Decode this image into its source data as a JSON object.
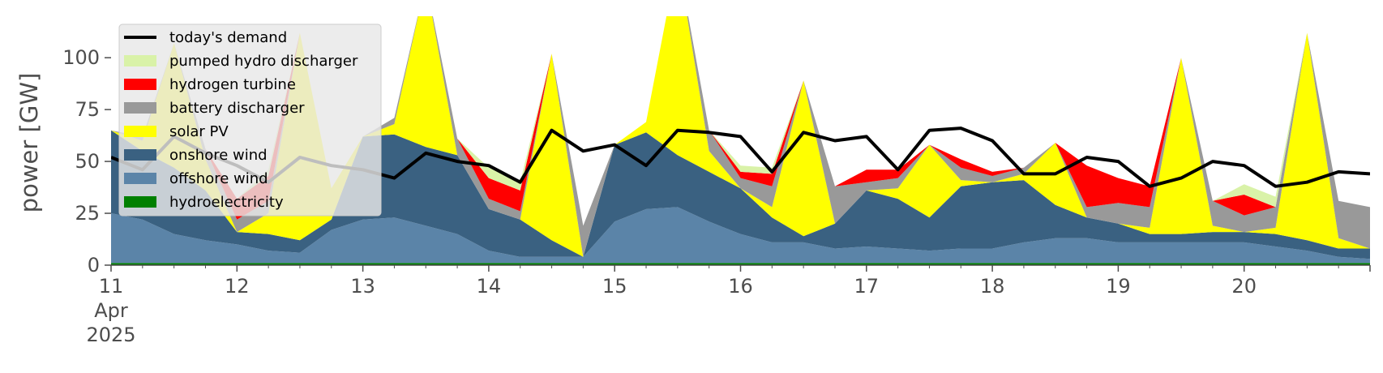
{
  "chart_data": {
    "type": "area",
    "ylabel": "power [GW]",
    "ylim": [
      0,
      120
    ],
    "xlim": [
      "2025-04-11 00:00",
      "2025-04-21 00:00"
    ],
    "yticks": [
      0,
      25,
      50,
      75,
      100
    ],
    "ytick_labels": [
      "0",
      "25",
      "50",
      "75",
      "100"
    ],
    "xticks": [
      {
        "date": "2025-04-11",
        "label": "11",
        "sub": [
          "Apr",
          "2025"
        ]
      },
      {
        "date": "2025-04-12",
        "label": "12"
      },
      {
        "date": "2025-04-13",
        "label": "13"
      },
      {
        "date": "2025-04-14",
        "label": "14"
      },
      {
        "date": "2025-04-15",
        "label": "15"
      },
      {
        "date": "2025-04-16",
        "label": "16"
      },
      {
        "date": "2025-04-17",
        "label": "17"
      },
      {
        "date": "2025-04-18",
        "label": "18"
      },
      {
        "date": "2025-04-19",
        "label": "19"
      },
      {
        "date": "2025-04-20",
        "label": "20"
      }
    ],
    "grid": false,
    "legend_position": "top-left",
    "x": [
      "2025-04-11 00:00",
      "2025-04-11 06:00",
      "2025-04-11 12:00",
      "2025-04-11 18:00",
      "2025-04-12 00:00",
      "2025-04-12 06:00",
      "2025-04-12 12:00",
      "2025-04-12 18:00",
      "2025-04-13 00:00",
      "2025-04-13 06:00",
      "2025-04-13 12:00",
      "2025-04-13 18:00",
      "2025-04-14 00:00",
      "2025-04-14 06:00",
      "2025-04-14 12:00",
      "2025-04-14 18:00",
      "2025-04-15 00:00",
      "2025-04-15 06:00",
      "2025-04-15 12:00",
      "2025-04-15 18:00",
      "2025-04-16 00:00",
      "2025-04-16 06:00",
      "2025-04-16 12:00",
      "2025-04-16 18:00",
      "2025-04-17 00:00",
      "2025-04-17 06:00",
      "2025-04-17 12:00",
      "2025-04-17 18:00",
      "2025-04-18 00:00",
      "2025-04-18 06:00",
      "2025-04-18 12:00",
      "2025-04-18 18:00",
      "2025-04-19 00:00",
      "2025-04-19 06:00",
      "2025-04-19 12:00",
      "2025-04-19 18:00",
      "2025-04-20 00:00",
      "2025-04-20 06:00",
      "2025-04-20 12:00",
      "2025-04-20 18:00",
      "2025-04-21 00:00"
    ],
    "series": [
      {
        "name": "hydroelectricity",
        "color": "#008000",
        "values": [
          1,
          1,
          1,
          1,
          1,
          1,
          1,
          1,
          1,
          1,
          1,
          1,
          1,
          1,
          1,
          1,
          1,
          1,
          1,
          1,
          1,
          1,
          1,
          1,
          1,
          1,
          1,
          1,
          1,
          1,
          1,
          1,
          1,
          1,
          1,
          1,
          1,
          1,
          1,
          1,
          1
        ]
      },
      {
        "name": "offshore wind",
        "color": "#5b84a8",
        "values": [
          24,
          21,
          14,
          11,
          9,
          6,
          5,
          16,
          21,
          22,
          18,
          14,
          6,
          3,
          3,
          3,
          20,
          26,
          27,
          20,
          14,
          10,
          10,
          7,
          8,
          7,
          6,
          7,
          7,
          10,
          12,
          12,
          10,
          10,
          10,
          10,
          10,
          8,
          6,
          3,
          2
        ]
      },
      {
        "name": "onshore wind",
        "color": "#3a6181",
        "values": [
          40,
          33,
          32,
          24,
          6,
          8,
          6,
          5,
          40,
          40,
          38,
          38,
          20,
          18,
          8,
          0,
          37,
          37,
          25,
          24,
          22,
          12,
          3,
          12,
          27,
          24,
          16,
          30,
          32,
          30,
          16,
          10,
          9,
          4,
          4,
          5,
          5,
          6,
          5,
          4,
          5
        ]
      },
      {
        "name": "solar PV",
        "color": "#ffff00",
        "values": [
          0,
          5,
          60,
          15,
          0,
          10,
          100,
          15,
          0,
          5,
          80,
          0,
          0,
          0,
          90,
          0,
          0,
          5,
          95,
          10,
          0,
          5,
          75,
          0,
          0,
          5,
          35,
          3,
          0,
          3,
          30,
          0,
          0,
          3,
          85,
          3,
          0,
          3,
          100,
          5,
          0
        ]
      },
      {
        "name": "battery discharger",
        "color": "#999999",
        "values": [
          0,
          2,
          0,
          5,
          6,
          6,
          0,
          0,
          0,
          3,
          0,
          8,
          5,
          4,
          0,
          15,
          0,
          0,
          0,
          10,
          5,
          10,
          0,
          18,
          4,
          5,
          0,
          6,
          3,
          3,
          0,
          5,
          10,
          10,
          0,
          12,
          8,
          10,
          0,
          18,
          20
        ]
      },
      {
        "name": "hydrogen turbine",
        "color": "#ff0000",
        "values": [
          0,
          0,
          0,
          0,
          10,
          12,
          0,
          0,
          0,
          0,
          0,
          0,
          10,
          10,
          0,
          0,
          0,
          0,
          0,
          0,
          3,
          6,
          0,
          0,
          6,
          4,
          0,
          4,
          2,
          0,
          0,
          20,
          12,
          10,
          0,
          0,
          10,
          0,
          0,
          0,
          0
        ]
      },
      {
        "name": "pumped hydro discharger",
        "color": "#d9f2a8",
        "values": [
          0,
          0,
          0,
          0,
          0,
          3,
          0,
          0,
          0,
          0,
          0,
          0,
          5,
          4,
          0,
          0,
          0,
          0,
          0,
          0,
          3,
          3,
          0,
          0,
          0,
          0,
          0,
          0,
          0,
          0,
          0,
          0,
          0,
          0,
          0,
          0,
          5,
          5,
          0,
          0,
          0
        ]
      }
    ],
    "demand": {
      "name": "today's demand",
      "color": "#000000",
      "values": [
        52,
        46,
        62,
        54,
        48,
        40,
        52,
        48,
        46,
        42,
        54,
        50,
        48,
        40,
        65,
        55,
        58,
        48,
        65,
        64,
        62,
        45,
        64,
        60,
        62,
        46,
        65,
        66,
        60,
        44,
        44,
        52,
        50,
        38,
        42,
        50,
        48,
        38,
        40,
        45,
        44
      ]
    }
  }
}
